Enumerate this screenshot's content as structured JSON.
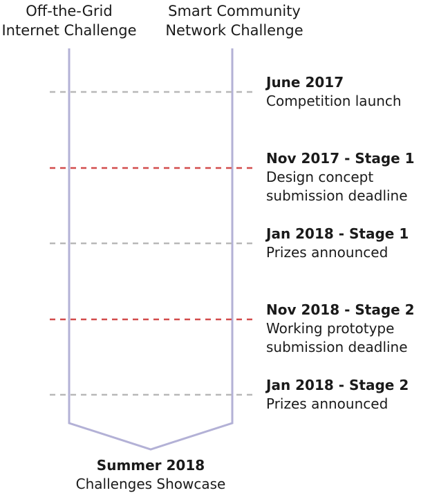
{
  "tracks": {
    "left": [
      "Off-the-Grid",
      "Internet Challenge"
    ],
    "right": [
      "Smart Community",
      "Network Challenge"
    ]
  },
  "milestones": [
    {
      "date": "June 2017",
      "desc": [
        "Competition launch"
      ],
      "type": "info"
    },
    {
      "date": "Nov 2017 - Stage 1",
      "desc": [
        "Design concept",
        "submission deadline"
      ],
      "type": "deadline"
    },
    {
      "date": "Jan 2018 - Stage 1",
      "desc": [
        "Prizes announced"
      ],
      "type": "info"
    },
    {
      "date": "Nov 2018 - Stage 2",
      "desc": [
        "Working prototype",
        "submission deadline"
      ],
      "type": "deadline"
    },
    {
      "date": "Jan 2018 - Stage 2",
      "desc": [
        "Prizes announced"
      ],
      "type": "info"
    }
  ],
  "finale": {
    "title": "Summer 2018",
    "subtitle": "Challenges Showcase"
  },
  "colors": {
    "track_line": "#b3b1d6",
    "info_line": "#b8b8b8",
    "deadline_line": "#d24b4b"
  }
}
